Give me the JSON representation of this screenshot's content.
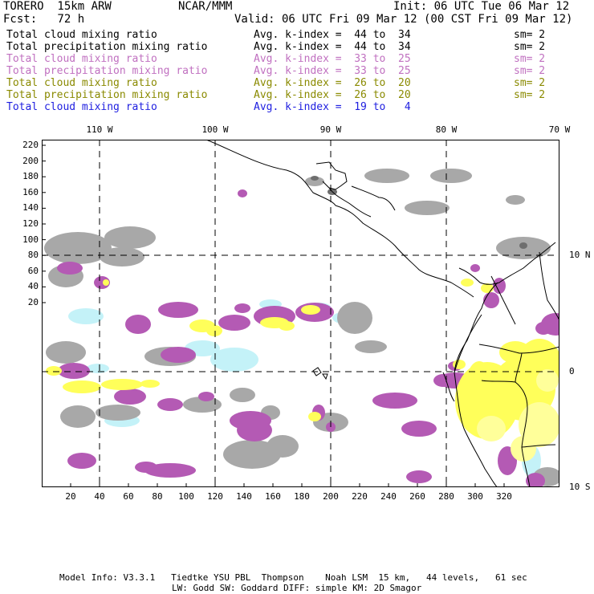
{
  "header": {
    "model": "TORERO  15km ARW",
    "org": "NCAR/MMM",
    "init": "Init: 06 UTC Tue 06 Mar 12",
    "fcst": "Fcst:   72 h",
    "valid": "Valid: 06 UTC Fri 09 Mar 12 (00 CST Fri 09 Mar 12)"
  },
  "legend": [
    {
      "name": "Total cloud mixing ratio",
      "avg": "Avg. k-index =  44 to  34",
      "sm": "sm= 2",
      "color": "#000000"
    },
    {
      "name": "Total precipitation mixing ratio",
      "avg": "Avg. k-index =  44 to  34",
      "sm": "sm= 2",
      "color": "#000000"
    },
    {
      "name": "Total cloud mixing ratio",
      "avg": "Avg. k-index =  33 to  25",
      "sm": "sm= 2",
      "color": "#c070c0"
    },
    {
      "name": "Total precipitation mixing ratio",
      "avg": "Avg. k-index =  33 to  25",
      "sm": "sm= 2",
      "color": "#c070c0"
    },
    {
      "name": "Total cloud mixing ratio",
      "avg": "Avg. k-index =  26 to  20",
      "sm": "sm= 2",
      "color": "#8a8a00"
    },
    {
      "name": "Total precipitation mixing ratio",
      "avg": "Avg. k-index =  26 to  20",
      "sm": "sm= 2",
      "color": "#8a8a00"
    },
    {
      "name": "Total cloud mixing ratio",
      "avg": "Avg. k-index =  19 to   4",
      "sm": "",
      "color": "#2020e0"
    }
  ],
  "map": {
    "lon_labels": [
      "110 W",
      "100 W",
      "90 W",
      "80 W",
      "70 W"
    ],
    "lat_labels": [
      "10 N",
      "0",
      "10 S"
    ],
    "y_ticks": [
      "220",
      "200",
      "180",
      "160",
      "140",
      "120",
      "100",
      "80",
      "60",
      "40",
      "20"
    ],
    "x_ticks": [
      "20",
      "40",
      "60",
      "80",
      "100",
      "120",
      "140",
      "160",
      "180",
      "200",
      "220",
      "240",
      "260",
      "280",
      "300",
      "320"
    ],
    "colors": {
      "gray": "#a8a8a8",
      "dark_gray": "#6e6e6e",
      "purple": "#b45ab4",
      "yellow": "#ffff5a",
      "light_yellow": "#ffff9a",
      "light_blue": "#c4f2f8"
    }
  },
  "footer": {
    "line1": "Model Info: V3.3.1   Tiedtke YSU PBL  Thompson    Noah LSM  15 km,   44 levels,   61 sec",
    "line2": "LW: Godd SW: Goddard DIFF: simple KM: 2D Smagor"
  }
}
